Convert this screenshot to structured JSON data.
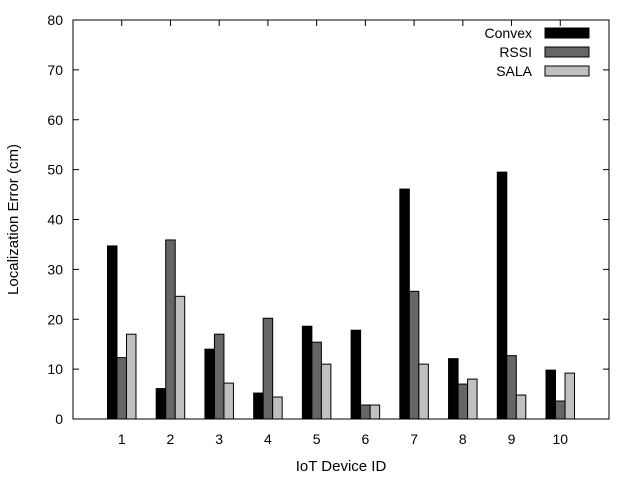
{
  "chart_data": {
    "type": "bar",
    "title": "",
    "xlabel": "IoT Device ID",
    "ylabel": "Localization Error (cm)",
    "categories": [
      "1",
      "2",
      "3",
      "4",
      "5",
      "6",
      "7",
      "8",
      "9",
      "10"
    ],
    "ylim": [
      0,
      80
    ],
    "yticks": [
      0,
      10,
      20,
      30,
      40,
      50,
      60,
      70,
      80
    ],
    "grid": false,
    "legend_position": "top-right",
    "series": [
      {
        "name": "Convex",
        "color": "#000000",
        "values": [
          34.7,
          6.1,
          14.0,
          5.2,
          18.6,
          17.8,
          46.1,
          12.1,
          49.5,
          9.8
        ]
      },
      {
        "name": "RSSI",
        "color": "#666666",
        "values": [
          12.3,
          35.9,
          17.0,
          20.2,
          15.4,
          2.8,
          25.6,
          7.0,
          12.7,
          3.6
        ]
      },
      {
        "name": "SALA",
        "color": "#c0c0c0",
        "values": [
          17.0,
          24.6,
          7.2,
          4.4,
          11.0,
          2.8,
          11.0,
          8.0,
          4.8,
          9.2
        ]
      }
    ]
  }
}
